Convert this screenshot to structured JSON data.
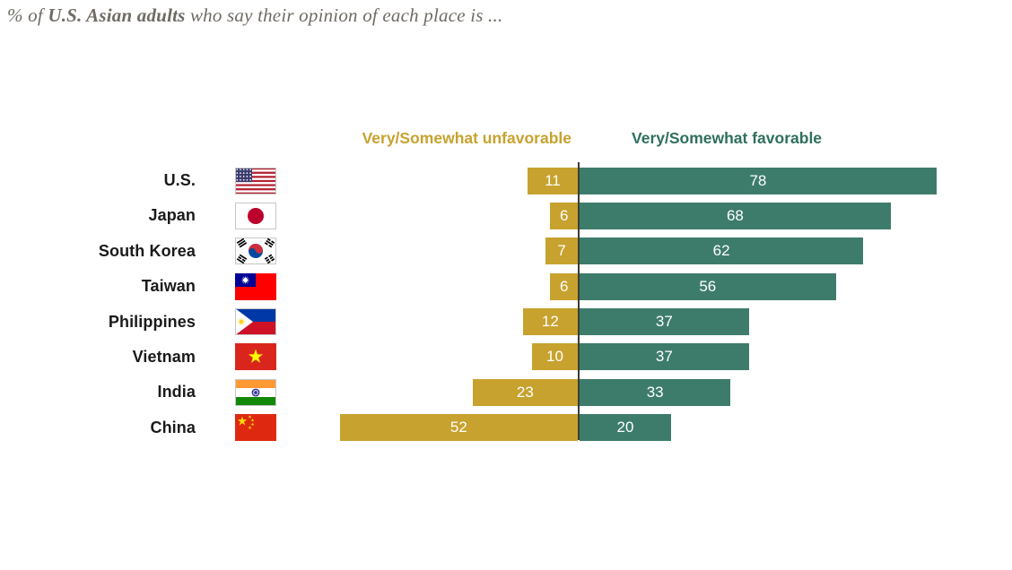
{
  "title": {
    "prefix": "% of ",
    "emphasis": "U.S. Asian adults",
    "suffix": " who say their opinion of each place is ..."
  },
  "colors": {
    "unfavorable": "#C7A22E",
    "favorable": "#3D7C6B",
    "favorable_header": "#2F6F5E",
    "axis": "#3C3C38",
    "title_text": "#6F6B64",
    "country_label": "#1A1A1A",
    "bar_value_text": "#FFFFFF"
  },
  "chart_data": {
    "type": "bar",
    "variant": "diverging-horizontal",
    "title": "% of U.S. Asian adults who say their opinion of each place is ...",
    "categories": [
      "U.S.",
      "Japan",
      "South Korea",
      "Taiwan",
      "Philippines",
      "Vietnam",
      "India",
      "China"
    ],
    "flags": [
      "us-flag-icon",
      "japan-flag-icon",
      "south-korea-flag-icon",
      "taiwan-flag-icon",
      "philippines-flag-icon",
      "vietnam-flag-icon",
      "india-flag-icon",
      "china-flag-icon"
    ],
    "series": [
      {
        "name": "Very/Somewhat unfavorable",
        "direction": "left",
        "values": [
          11,
          6,
          7,
          6,
          12,
          10,
          23,
          52
        ]
      },
      {
        "name": "Very/Somewhat favorable",
        "direction": "right",
        "values": [
          78,
          68,
          62,
          56,
          37,
          37,
          33,
          20
        ]
      }
    ],
    "unit": "percent",
    "grid": false,
    "legend_position": "top",
    "value_labels": "inside-bars"
  }
}
